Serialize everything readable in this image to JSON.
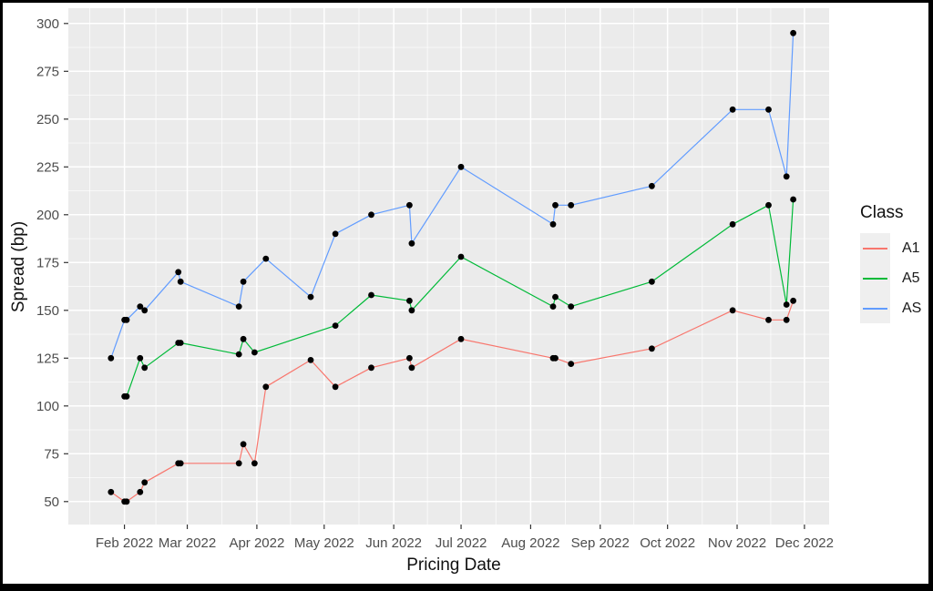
{
  "chart_data": {
    "type": "line",
    "title": "",
    "xlabel": "Pricing Date",
    "ylabel": "Spread (bp)",
    "legend": {
      "title": "Class",
      "position": "right"
    },
    "panel_bg": "#EBEBEB",
    "grid_color": "#FFFFFF",
    "tick_label_color": "#4D4D4D",
    "tick_mark_color": "#333333",
    "point_color": "#000000",
    "ylim": [
      38,
      308
    ],
    "yticks": [
      50,
      75,
      100,
      125,
      150,
      175,
      200,
      225,
      250,
      275,
      300
    ],
    "y_minor_ticks": [
      62.5,
      87.5,
      112.5,
      137.5,
      162.5,
      187.5,
      212.5,
      237.5,
      262.5,
      287.5
    ],
    "x_ticks": [
      {
        "date": "2022-02-01",
        "label": "Feb 2022"
      },
      {
        "date": "2022-03-01",
        "label": "Mar 2022"
      },
      {
        "date": "2022-04-01",
        "label": "Apr 2022"
      },
      {
        "date": "2022-05-01",
        "label": "May 2022"
      },
      {
        "date": "2022-06-01",
        "label": "Jun 2022"
      },
      {
        "date": "2022-07-01",
        "label": "Jul 2022"
      },
      {
        "date": "2022-08-01",
        "label": "Aug 2022"
      },
      {
        "date": "2022-09-01",
        "label": "Sep 2022"
      },
      {
        "date": "2022-10-01",
        "label": "Oct 2022"
      },
      {
        "date": "2022-11-01",
        "label": "Nov 2022"
      },
      {
        "date": "2022-12-01",
        "label": "Dec 2022"
      }
    ],
    "x_domain_days_from_feb1": [
      -25,
      314
    ],
    "series": [
      {
        "name": "A1",
        "color": "#F8766D",
        "points": [
          [
            "2022-01-26",
            55
          ],
          [
            "2022-02-01",
            50
          ],
          [
            "2022-02-02",
            50
          ],
          [
            "2022-02-08",
            55
          ],
          [
            "2022-02-10",
            60
          ],
          [
            "2022-02-25",
            70
          ],
          [
            "2022-02-26",
            70
          ],
          [
            "2022-03-24",
            70
          ],
          [
            "2022-03-26",
            80
          ],
          [
            "2022-03-31",
            70
          ],
          [
            "2022-04-05",
            110
          ],
          [
            "2022-04-25",
            124
          ],
          [
            "2022-05-06",
            110
          ],
          [
            "2022-05-22",
            120
          ],
          [
            "2022-06-08",
            125
          ],
          [
            "2022-06-09",
            120
          ],
          [
            "2022-07-01",
            135
          ],
          [
            "2022-08-11",
            125
          ],
          [
            "2022-08-12",
            125
          ],
          [
            "2022-08-19",
            122
          ],
          [
            "2022-09-24",
            130
          ],
          [
            "2022-10-30",
            150
          ],
          [
            "2022-11-15",
            145
          ],
          [
            "2022-11-23",
            145
          ],
          [
            "2022-11-26",
            155
          ]
        ]
      },
      {
        "name": "A5",
        "color": "#00BA38",
        "points": [
          [
            "2022-02-01",
            105
          ],
          [
            "2022-02-02",
            105
          ],
          [
            "2022-02-08",
            125
          ],
          [
            "2022-02-10",
            120
          ],
          [
            "2022-02-25",
            133
          ],
          [
            "2022-02-26",
            133
          ],
          [
            "2022-03-24",
            127
          ],
          [
            "2022-03-26",
            135
          ],
          [
            "2022-03-31",
            128
          ],
          [
            "2022-05-06",
            142
          ],
          [
            "2022-05-22",
            158
          ],
          [
            "2022-06-08",
            155
          ],
          [
            "2022-06-09",
            150
          ],
          [
            "2022-07-01",
            178
          ],
          [
            "2022-08-11",
            152
          ],
          [
            "2022-08-12",
            157
          ],
          [
            "2022-08-19",
            152
          ],
          [
            "2022-09-24",
            165
          ],
          [
            "2022-10-30",
            195
          ],
          [
            "2022-11-15",
            205
          ],
          [
            "2022-11-23",
            153
          ],
          [
            "2022-11-26",
            208
          ]
        ]
      },
      {
        "name": "AS",
        "color": "#619CFF",
        "points": [
          [
            "2022-01-26",
            125
          ],
          [
            "2022-02-01",
            145
          ],
          [
            "2022-02-02",
            145
          ],
          [
            "2022-02-08",
            152
          ],
          [
            "2022-02-10",
            150
          ],
          [
            "2022-02-25",
            170
          ],
          [
            "2022-02-26",
            165
          ],
          [
            "2022-03-24",
            152
          ],
          [
            "2022-03-26",
            165
          ],
          [
            "2022-04-05",
            177
          ],
          [
            "2022-04-25",
            157
          ],
          [
            "2022-05-06",
            190
          ],
          [
            "2022-05-22",
            200
          ],
          [
            "2022-06-08",
            205
          ],
          [
            "2022-06-09",
            185
          ],
          [
            "2022-07-01",
            225
          ],
          [
            "2022-08-11",
            195
          ],
          [
            "2022-08-12",
            205
          ],
          [
            "2022-08-19",
            205
          ],
          [
            "2022-09-24",
            215
          ],
          [
            "2022-10-30",
            255
          ],
          [
            "2022-11-15",
            255
          ],
          [
            "2022-11-23",
            220
          ],
          [
            "2022-11-26",
            295
          ]
        ]
      }
    ]
  }
}
